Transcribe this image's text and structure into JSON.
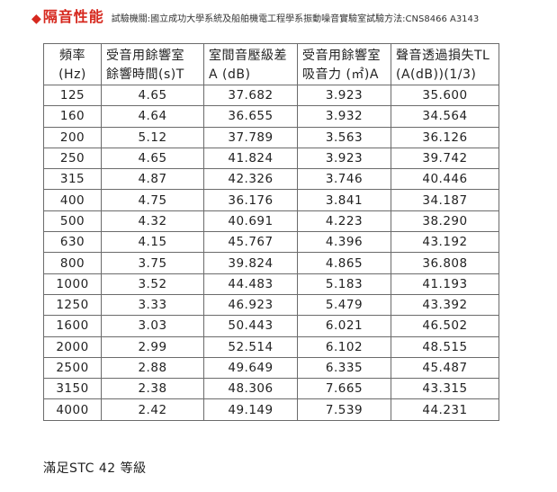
{
  "header": {
    "mark": "◆",
    "title": "隔音性能",
    "institution": "試驗機關:國立成功大學系統及船舶機電工程學系振動噪音實驗室",
    "method": "試驗方法:CNS8466 A3143"
  },
  "table": {
    "headers": [
      {
        "line1": "頻率",
        "line2": "(Hz)"
      },
      {
        "line1": "受音用餘響室",
        "line2": "餘響時間(s)T"
      },
      {
        "line1": "室間音壓級差",
        "line2": "A (dB)"
      },
      {
        "line1": "受音用餘響室",
        "line2": "吸音力 (㎡)A"
      },
      {
        "line1": "聲音透過損失TL",
        "line2": "(A(dB))(1/3)"
      }
    ],
    "rows": [
      [
        "125",
        "4.65",
        "37.682",
        "3.923",
        "35.600"
      ],
      [
        "160",
        "4.64",
        "36.655",
        "3.932",
        "34.564"
      ],
      [
        "200",
        "5.12",
        "37.789",
        "3.563",
        "36.126"
      ],
      [
        "250",
        "4.65",
        "41.824",
        "3.923",
        "39.742"
      ],
      [
        "315",
        "4.87",
        "42.326",
        "3.746",
        "40.446"
      ],
      [
        "400",
        "4.75",
        "36.176",
        "3.841",
        "34.187"
      ],
      [
        "500",
        "4.32",
        "40.691",
        "4.223",
        "38.290"
      ],
      [
        "630",
        "4.15",
        "45.767",
        "4.396",
        "43.192"
      ],
      [
        "800",
        "3.75",
        "39.824",
        "4.865",
        "36.808"
      ],
      [
        "1000",
        "3.52",
        "44.483",
        "5.183",
        "41.193"
      ],
      [
        "1250",
        "3.33",
        "46.923",
        "5.479",
        "43.392"
      ],
      [
        "1600",
        "3.03",
        "50.443",
        "6.021",
        "46.502"
      ],
      [
        "2000",
        "2.99",
        "52.514",
        "6.102",
        "48.515"
      ],
      [
        "2500",
        "2.88",
        "49.649",
        "6.335",
        "45.487"
      ],
      [
        "3150",
        "2.38",
        "48.306",
        "7.665",
        "43.315"
      ],
      [
        "4000",
        "2.42",
        "49.149",
        "7.539",
        "44.231"
      ]
    ]
  },
  "footer": {
    "rating": "滿足STC 42 等級"
  },
  "colors": {
    "accent": "#d6281e",
    "border": "#6b6b6b"
  }
}
